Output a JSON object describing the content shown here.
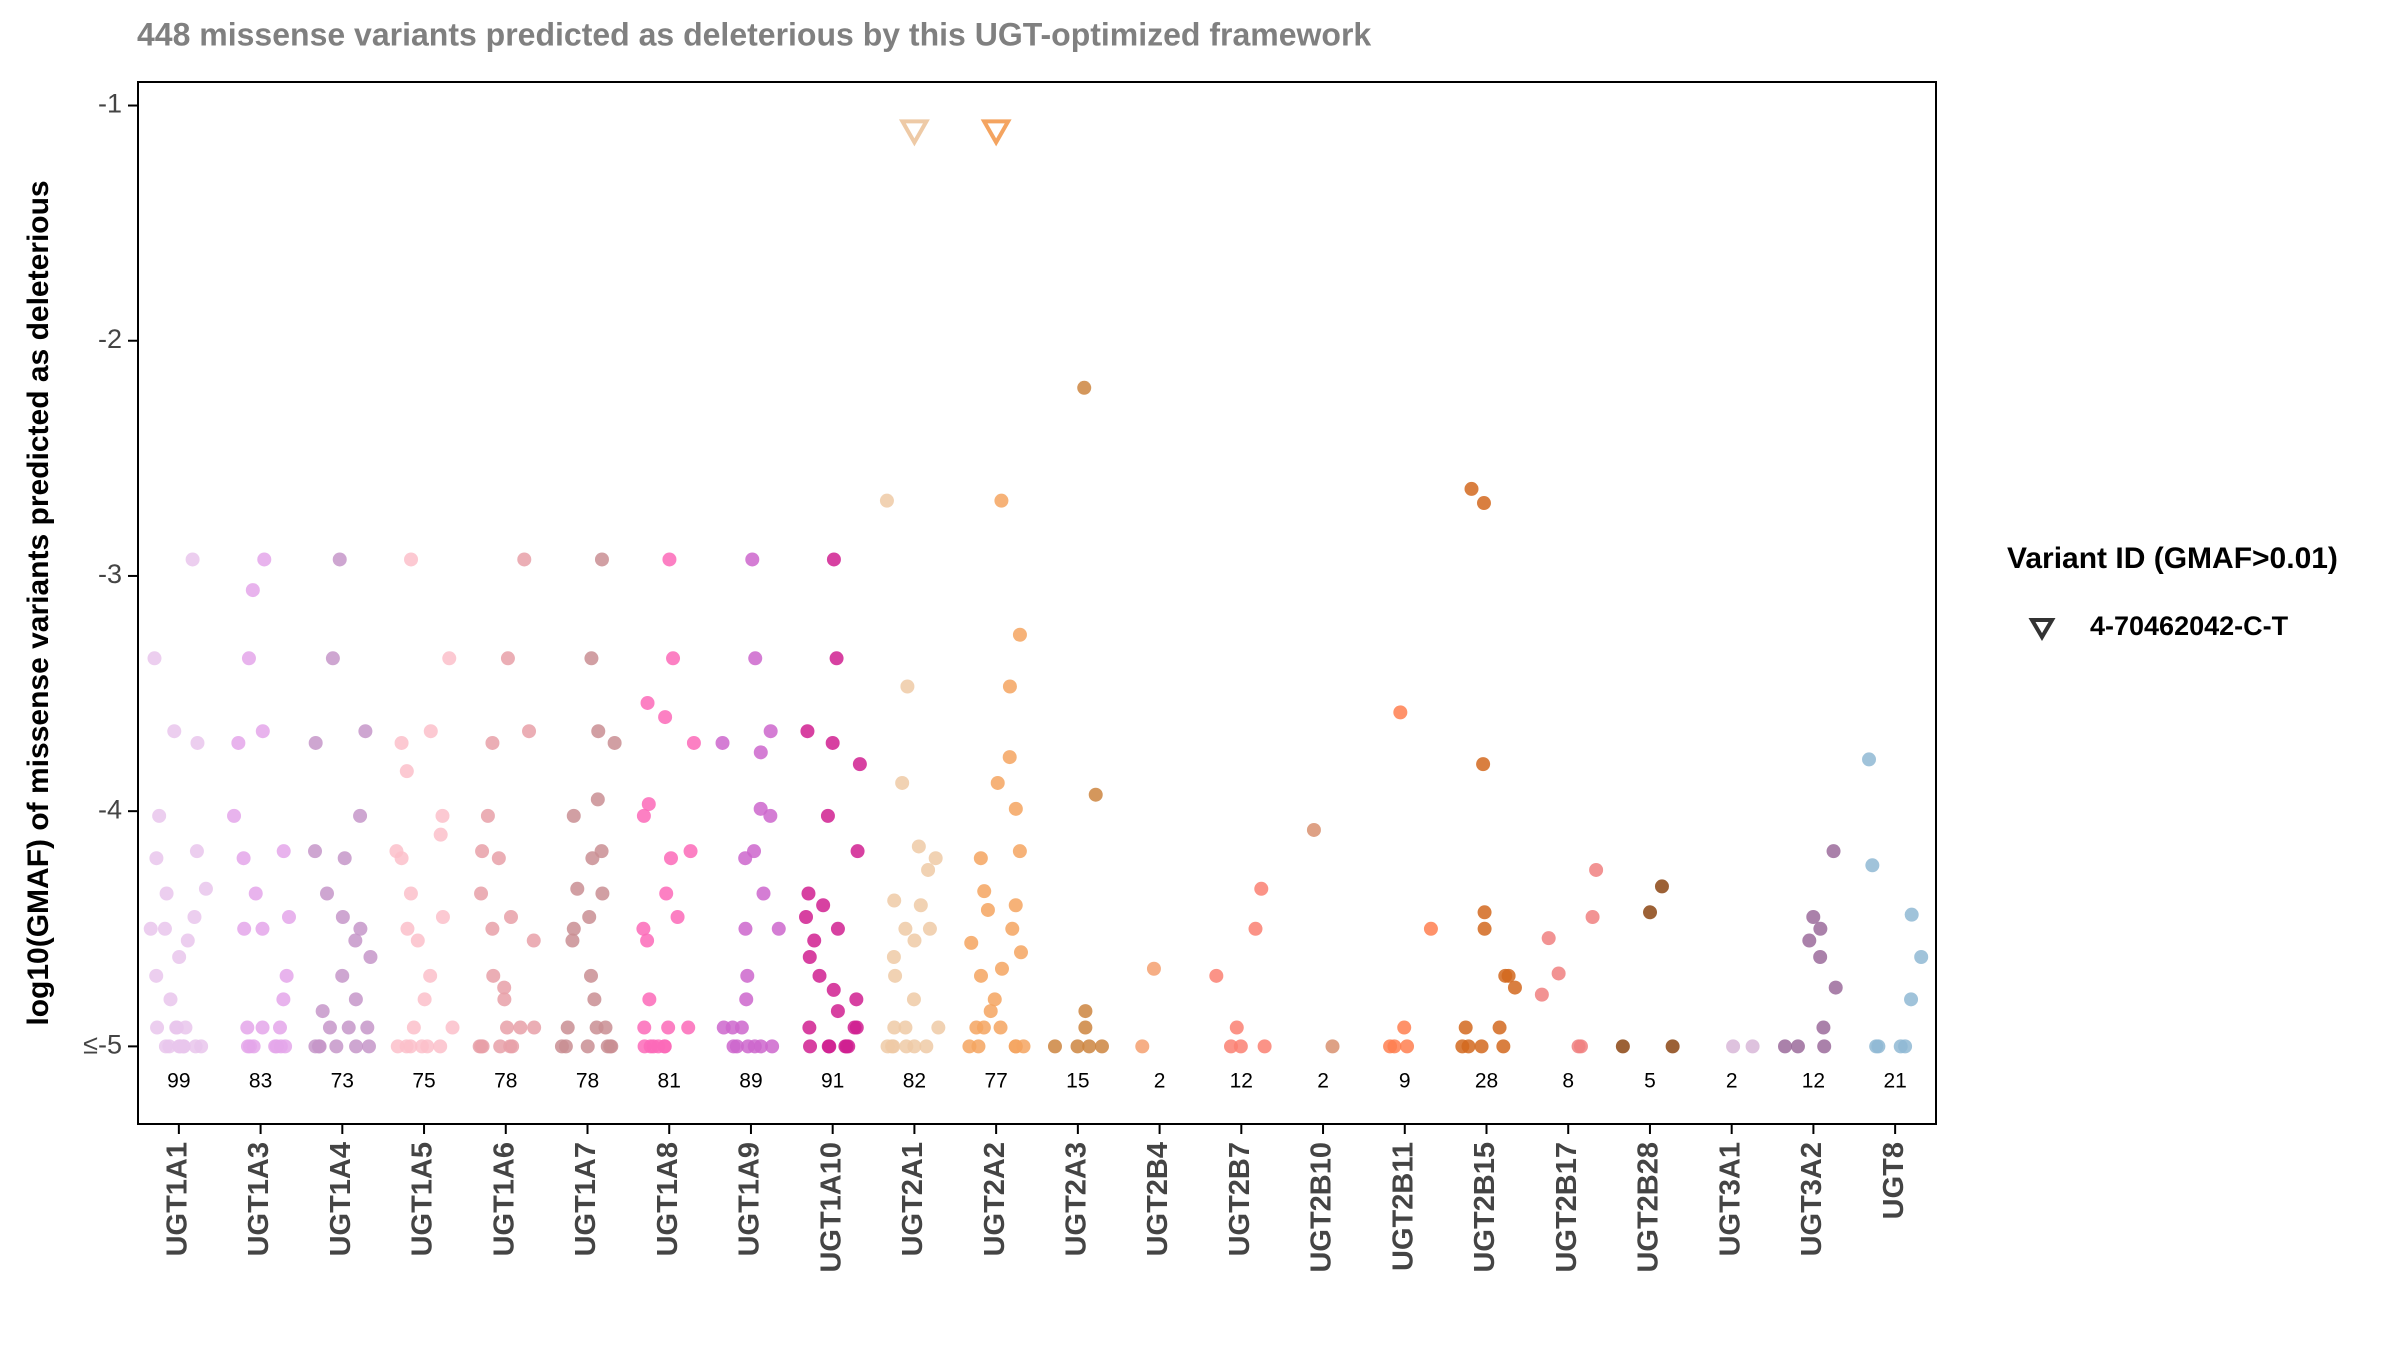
{
  "chart_data": {
    "type": "strip",
    "title": "448 missense variants predicted as deleterious by this UGT-optimized framework",
    "y_label": "log10(GMAF) of missense variants predicted as deleterious",
    "categories": [
      "UGT1A1",
      "UGT1A3",
      "UGT1A4",
      "UGT1A5",
      "UGT1A6",
      "UGT1A7",
      "UGT1A8",
      "UGT1A9",
      "UGT1A10",
      "UGT2A1",
      "UGT2A2",
      "UGT2A3",
      "UGT2B4",
      "UGT2B7",
      "UGT2B10",
      "UGT2B11",
      "UGT2B15",
      "UGT2B17",
      "UGT2B28",
      "UGT3A1",
      "UGT3A2",
      "UGT8"
    ],
    "colors": [
      "#e9c6ec",
      "#e4a6ea",
      "#c597c9",
      "#fcbfca",
      "#e8a0a8",
      "#c98e93",
      "#fb6ab8",
      "#cc66cc",
      "#d02090",
      "#eecaa6",
      "#f4a460",
      "#cd853f",
      "#f4a070",
      "#fa8072",
      "#d89070",
      "#ff7f50",
      "#d2691e",
      "#f08080",
      "#8b4513",
      "#d8b7d8",
      "#9b6b9b",
      "#8fb8d4"
    ],
    "counts": [
      99,
      83,
      73,
      75,
      78,
      78,
      81,
      89,
      91,
      82,
      77,
      15,
      2,
      12,
      2,
      9,
      28,
      8,
      5,
      2,
      12,
      21
    ],
    "values": [
      [
        -2.93,
        -3.35,
        -3.66,
        -3.71,
        -4.02,
        -4.17,
        -4.2,
        -4.33,
        -4.35,
        -4.45,
        -4.5,
        -4.5,
        -4.55,
        -4.62,
        -4.7,
        -4.8,
        -4.92,
        -4.92,
        -4.92,
        -4.92,
        -5,
        -5,
        -5,
        -5,
        -5,
        -5,
        -5,
        -5
      ],
      [
        -2.93,
        -3.06,
        -3.35,
        -3.66,
        -3.71,
        -4.02,
        -4.17,
        -4.2,
        -4.35,
        -4.45,
        -4.5,
        -4.5,
        -4.7,
        -4.8,
        -4.92,
        -4.92,
        -4.92,
        -5,
        -5,
        -5,
        -5,
        -5,
        -5,
        -5
      ],
      [
        -2.93,
        -3.35,
        -3.66,
        -3.71,
        -4.02,
        -4.17,
        -4.2,
        -4.35,
        -4.45,
        -4.5,
        -4.55,
        -4.62,
        -4.7,
        -4.8,
        -4.85,
        -4.92,
        -4.92,
        -4.92,
        -5,
        -5,
        -5,
        -5,
        -5,
        -5
      ],
      [
        -2.93,
        -3.35,
        -3.66,
        -3.71,
        -3.83,
        -4.02,
        -4.1,
        -4.17,
        -4.2,
        -4.35,
        -4.45,
        -4.5,
        -4.55,
        -4.7,
        -4.8,
        -4.92,
        -4.92,
        -5,
        -5,
        -5,
        -5,
        -5,
        -5
      ],
      [
        -2.93,
        -3.35,
        -3.66,
        -3.71,
        -4.02,
        -4.17,
        -4.2,
        -4.35,
        -4.45,
        -4.5,
        -4.55,
        -4.7,
        -4.75,
        -4.8,
        -4.92,
        -4.92,
        -4.92,
        -5,
        -5,
        -5,
        -5,
        -5,
        -5
      ],
      [
        -2.93,
        -3.35,
        -3.66,
        -3.71,
        -3.95,
        -4.02,
        -4.17,
        -4.2,
        -4.33,
        -4.35,
        -4.45,
        -4.5,
        -4.55,
        -4.7,
        -4.8,
        -4.92,
        -4.92,
        -4.92,
        -5,
        -5,
        -5,
        -5,
        -5,
        -5
      ],
      [
        -2.93,
        -3.35,
        -3.54,
        -3.6,
        -3.71,
        -3.97,
        -4.02,
        -4.17,
        -4.2,
        -4.35,
        -4.45,
        -4.5,
        -4.55,
        -4.8,
        -4.92,
        -4.92,
        -4.92,
        -5,
        -5,
        -5,
        -5,
        -5,
        -5
      ],
      [
        -2.93,
        -3.35,
        -3.66,
        -3.71,
        -3.75,
        -3.99,
        -4.02,
        -4.17,
        -4.2,
        -4.35,
        -4.5,
        -4.5,
        -4.7,
        -4.8,
        -4.92,
        -4.92,
        -4.92,
        -5,
        -5,
        -5,
        -5,
        -5,
        -5
      ],
      [
        -2.93,
        -3.35,
        -3.66,
        -3.71,
        -3.8,
        -4.02,
        -4.17,
        -4.35,
        -4.4,
        -4.45,
        -4.5,
        -4.55,
        -4.62,
        -4.7,
        -4.76,
        -4.8,
        -4.85,
        -4.92,
        -4.92,
        -4.92,
        -5,
        -5,
        -5,
        -5,
        -5,
        -5
      ],
      [
        -2.68,
        -3.47,
        -3.88,
        -4.15,
        -4.2,
        -4.25,
        -4.38,
        -4.4,
        -4.5,
        -4.5,
        -4.55,
        -4.62,
        -4.7,
        -4.8,
        -4.92,
        -4.92,
        -4.92,
        -5,
        -5,
        -5,
        -5,
        -5,
        -5
      ],
      [
        -2.68,
        -3.25,
        -3.47,
        -3.77,
        -3.88,
        -3.99,
        -4.17,
        -4.2,
        -4.34,
        -4.4,
        -4.42,
        -4.5,
        -4.56,
        -4.6,
        -4.67,
        -4.7,
        -4.8,
        -4.85,
        -4.92,
        -4.92,
        -4.92,
        -5,
        -5,
        -5,
        -5,
        -5
      ],
      [
        -2.2,
        -3.93,
        -4.85,
        -4.92,
        -5,
        -5,
        -5,
        -5
      ],
      [
        -4.67,
        -5
      ],
      [
        -4.33,
        -4.5,
        -4.7,
        -4.92,
        -5,
        -5,
        -5
      ],
      [
        -4.08,
        -5
      ],
      [
        -3.58,
        -4.5,
        -4.92,
        -5,
        -5,
        -5
      ],
      [
        -2.63,
        -2.69,
        -3.8,
        -4.43,
        -4.5,
        -4.7,
        -4.7,
        -4.75,
        -4.92,
        -4.92,
        -5,
        -5,
        -5,
        -5
      ],
      [
        -4.25,
        -4.45,
        -4.54,
        -4.69,
        -4.78,
        -5,
        -5
      ],
      [
        -4.32,
        -4.43,
        -5,
        -5
      ],
      [
        -5,
        -5
      ],
      [
        -4.17,
        -4.45,
        -4.5,
        -4.55,
        -4.62,
        -4.75,
        -4.92,
        -5,
        -5,
        -5
      ],
      [
        -3.78,
        -4.23,
        -4.44,
        -4.62,
        -4.8,
        -5,
        -5,
        -5,
        -5
      ]
    ],
    "highlight": {
      "legend_title": "Variant ID (GMAF>0.01)",
      "name": "4-70462042-C-T",
      "categories": [
        "UGT2A1",
        "UGT2A2"
      ],
      "colors": [
        "#eecaa6",
        "#f4a460"
      ],
      "values": [
        -1.11,
        -1.11
      ]
    },
    "ylim": [
      -5.33,
      -0.9
    ],
    "yticks": [
      -1,
      -2,
      -3,
      -4,
      {
        "value": -5,
        "label": "≤-5"
      }
    ]
  }
}
